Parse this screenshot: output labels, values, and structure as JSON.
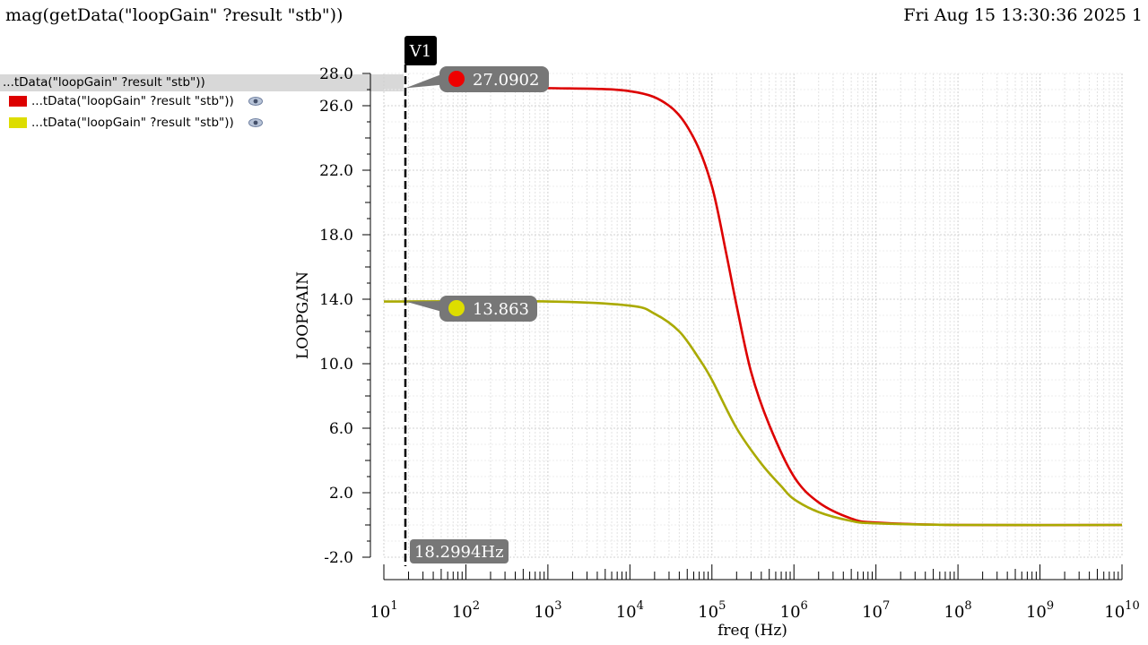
{
  "header": {
    "title": "mag(getData(\"loopGain\" ?result \"stb\"))",
    "date": "Fri Aug 15 13:30:36 2025  1"
  },
  "legend": {
    "group_label": "...tData(\"loopGain\" ?result \"stb\"))",
    "items": [
      {
        "label": "...tData(\"loopGain\" ?result \"stb\"))",
        "color": "#dd0000",
        "icon": "eye-icon"
      },
      {
        "label": "...tData(\"loopGain\" ?result \"stb\"))",
        "color": "#dddd00",
        "icon": "eye-icon"
      }
    ]
  },
  "marker": {
    "name": "V1",
    "x_label": "18.2994Hz",
    "x": 18.2994,
    "readouts": [
      {
        "value": 27.0902,
        "label": "27.0902",
        "color": "#ee0000"
      },
      {
        "value": 13.863,
        "label": "13.863",
        "color": "#dddd00"
      }
    ]
  },
  "chart_data": {
    "type": "line",
    "xscale": "log",
    "xlabel": "freq (Hz)",
    "ylabel": "LOOPGAIN",
    "xlim": [
      10,
      10000000000
    ],
    "ylim": [
      -2.0,
      28.0
    ],
    "yticks": [
      "-2.0",
      "2.0",
      "6.0",
      "10.0",
      "14.0",
      "18.0",
      "22.0",
      "26.0",
      "28.0"
    ],
    "ytick_values": [
      -2,
      2,
      6,
      10,
      14,
      18,
      22,
      26,
      28
    ],
    "xticks": [
      {
        "base": "10",
        "exp": "1",
        "value": 10
      },
      {
        "base": "10",
        "exp": "2",
        "value": 100
      },
      {
        "base": "10",
        "exp": "3",
        "value": 1000
      },
      {
        "base": "10",
        "exp": "4",
        "value": 10000
      },
      {
        "base": "10",
        "exp": "5",
        "value": 100000
      },
      {
        "base": "10",
        "exp": "6",
        "value": 1000000
      },
      {
        "base": "10",
        "exp": "7",
        "value": 10000000
      },
      {
        "base": "10",
        "exp": "8",
        "value": 100000000
      },
      {
        "base": "10",
        "exp": "9",
        "value": 1000000000
      },
      {
        "base": "10",
        "exp": "10",
        "value": 10000000000
      }
    ],
    "grid": true,
    "series": [
      {
        "color": "#dd0000",
        "x": [
          60,
          1000,
          10000,
          30000,
          60000,
          100000,
          150000,
          200000,
          300000,
          500000,
          1000000,
          2000000,
          5000000,
          10000000,
          100000000,
          10000000000
        ],
        "y": [
          27.09,
          27.09,
          26.9,
          26.0,
          24.0,
          21.0,
          16.8,
          13.6,
          9.5,
          6.2,
          3.0,
          1.4,
          0.4,
          0.15,
          0.0,
          0.0
        ]
      },
      {
        "color": "#aaaa00",
        "x": [
          10,
          1000,
          10000,
          20000,
          40000,
          70000,
          100000,
          200000,
          400000,
          700000,
          1000000,
          2000000,
          5000000,
          10000000,
          100000000,
          10000000000
        ],
        "y": [
          13.86,
          13.86,
          13.6,
          13.1,
          12.0,
          10.3,
          9.0,
          6.0,
          3.8,
          2.4,
          1.6,
          0.8,
          0.25,
          0.1,
          0.0,
          0.0
        ]
      }
    ]
  }
}
